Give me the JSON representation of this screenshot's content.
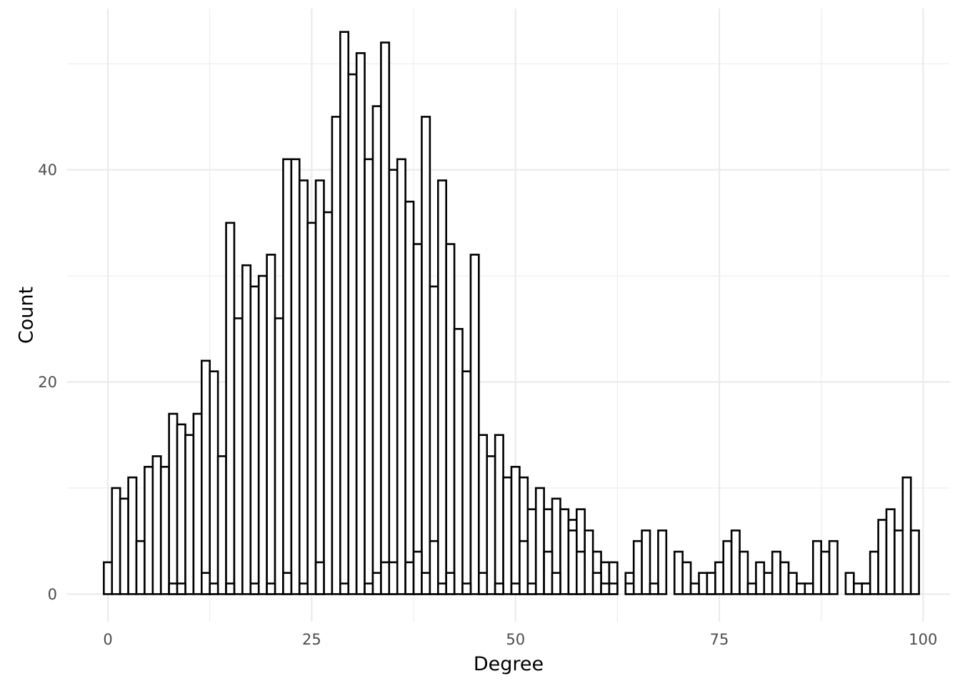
{
  "chart_data": {
    "type": "bar",
    "xlabel": "Degree",
    "ylabel": "Count",
    "xlim": [
      -5,
      103.3
    ],
    "ylim": [
      -2.6,
      55.2
    ],
    "x_ticks": [
      0,
      25,
      50,
      75,
      100
    ],
    "y_ticks": [
      0,
      20,
      40
    ],
    "x_tick_labels": [
      "0",
      "25",
      "50",
      "75",
      "100"
    ],
    "y_tick_labels": [
      "0",
      "20",
      "40"
    ],
    "grid": true,
    "bin_width": 1,
    "bar_fill": "#ffffff",
    "bar_stroke": "#000000",
    "series": [
      {
        "values": [
          3,
          10,
          9,
          11,
          5,
          12,
          13,
          12,
          17,
          16,
          15,
          17,
          22,
          21,
          13,
          35,
          26,
          31,
          29,
          30,
          32,
          26,
          41,
          41,
          39,
          35,
          39,
          36,
          45,
          53,
          49,
          51,
          41,
          46,
          52,
          40,
          41,
          37,
          33,
          45,
          29,
          39,
          33,
          25,
          21,
          32,
          15,
          13,
          15,
          11,
          12,
          11,
          8,
          10,
          8,
          9,
          8,
          7,
          8,
          0,
          4,
          3,
          3,
          0,
          2,
          5,
          6,
          0,
          6,
          0,
          4,
          3,
          0,
          2,
          2,
          3,
          5,
          6,
          4,
          0,
          3,
          2,
          4,
          3,
          2,
          0,
          0,
          5,
          4,
          5,
          0,
          2,
          0,
          1,
          4,
          7,
          8,
          6,
          11,
          6
        ]
      },
      {
        "values": [
          0,
          0,
          0,
          0,
          0,
          0,
          0,
          0,
          1,
          1,
          0,
          0,
          2,
          1,
          0,
          1,
          0,
          0,
          1,
          0,
          1,
          0,
          2,
          0,
          1,
          0,
          3,
          0,
          0,
          1,
          0,
          0,
          1,
          2,
          3,
          3,
          0,
          3,
          4,
          2,
          5,
          1,
          2,
          0,
          1,
          0,
          2,
          0,
          1,
          0,
          1,
          5,
          1,
          0,
          4,
          2,
          0,
          6,
          4,
          6,
          2,
          1,
          1,
          0,
          1,
          0,
          0,
          1,
          0,
          0,
          0,
          0,
          1,
          0,
          2,
          0,
          0,
          0,
          0,
          1,
          0,
          0,
          0,
          0,
          0,
          1,
          1,
          0,
          0,
          0,
          0,
          0,
          1,
          1,
          0,
          0,
          0,
          0,
          0,
          0
        ]
      }
    ]
  }
}
